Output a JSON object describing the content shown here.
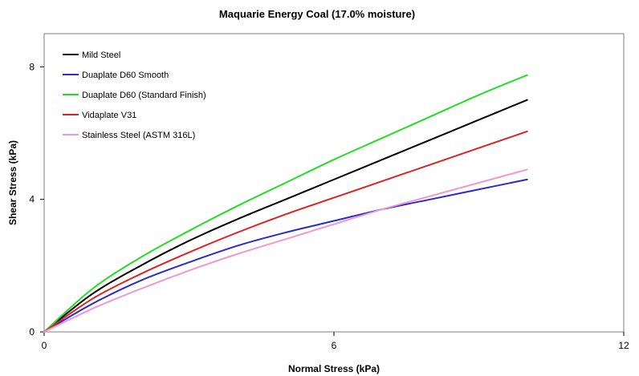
{
  "chart_data": {
    "type": "line",
    "title": "Maquarie Energy Coal (17.0% moisture)",
    "xlabel": "Normal Stress (kPa)",
    "ylabel": "Shear Stress (kPa)",
    "xlim": [
      0,
      12
    ],
    "ylim": [
      0,
      9
    ],
    "x_ticks": [
      0,
      6,
      12
    ],
    "y_ticks": [
      0,
      4,
      8
    ],
    "grid": false,
    "legend_position": "top-left",
    "series": [
      {
        "name": "Mild Steel",
        "color": "#000000",
        "x": [
          0,
          1,
          2,
          3,
          4,
          5,
          6,
          7,
          8,
          9,
          10
        ],
        "y": [
          0,
          1.15,
          2.0,
          2.75,
          3.4,
          4.0,
          4.6,
          5.2,
          5.8,
          6.4,
          7.0
        ]
      },
      {
        "name": "Duaplate D60 Smooth",
        "color": "#2b2bcc",
        "x": [
          0,
          1,
          2,
          3,
          4,
          5,
          6,
          7,
          8,
          9,
          10
        ],
        "y": [
          0,
          0.85,
          1.55,
          2.1,
          2.6,
          3.0,
          3.35,
          3.7,
          4.0,
          4.3,
          4.6
        ]
      },
      {
        "name": "Duaplate D60 (Standard Finish)",
        "color": "#22dd22",
        "x": [
          0,
          1,
          2,
          3,
          4,
          5,
          6,
          7,
          8,
          9,
          10
        ],
        "y": [
          0,
          1.3,
          2.25,
          3.05,
          3.8,
          4.5,
          5.2,
          5.85,
          6.5,
          7.15,
          7.75
        ]
      },
      {
        "name": "Vidaplate V31",
        "color": "#dd2222",
        "x": [
          0,
          1,
          2,
          3,
          4,
          5,
          6,
          7,
          8,
          9,
          10
        ],
        "y": [
          0,
          1.0,
          1.75,
          2.4,
          3.0,
          3.55,
          4.05,
          4.55,
          5.05,
          5.55,
          6.05
        ]
      },
      {
        "name": "Stainless Steel (ASTM 316L)",
        "color": "#ee99cc",
        "x": [
          0,
          1,
          2,
          3,
          4,
          5,
          6,
          7,
          8,
          9,
          10
        ],
        "y": [
          0,
          0.7,
          1.3,
          1.85,
          2.35,
          2.8,
          3.25,
          3.7,
          4.1,
          4.5,
          4.9
        ]
      }
    ]
  }
}
